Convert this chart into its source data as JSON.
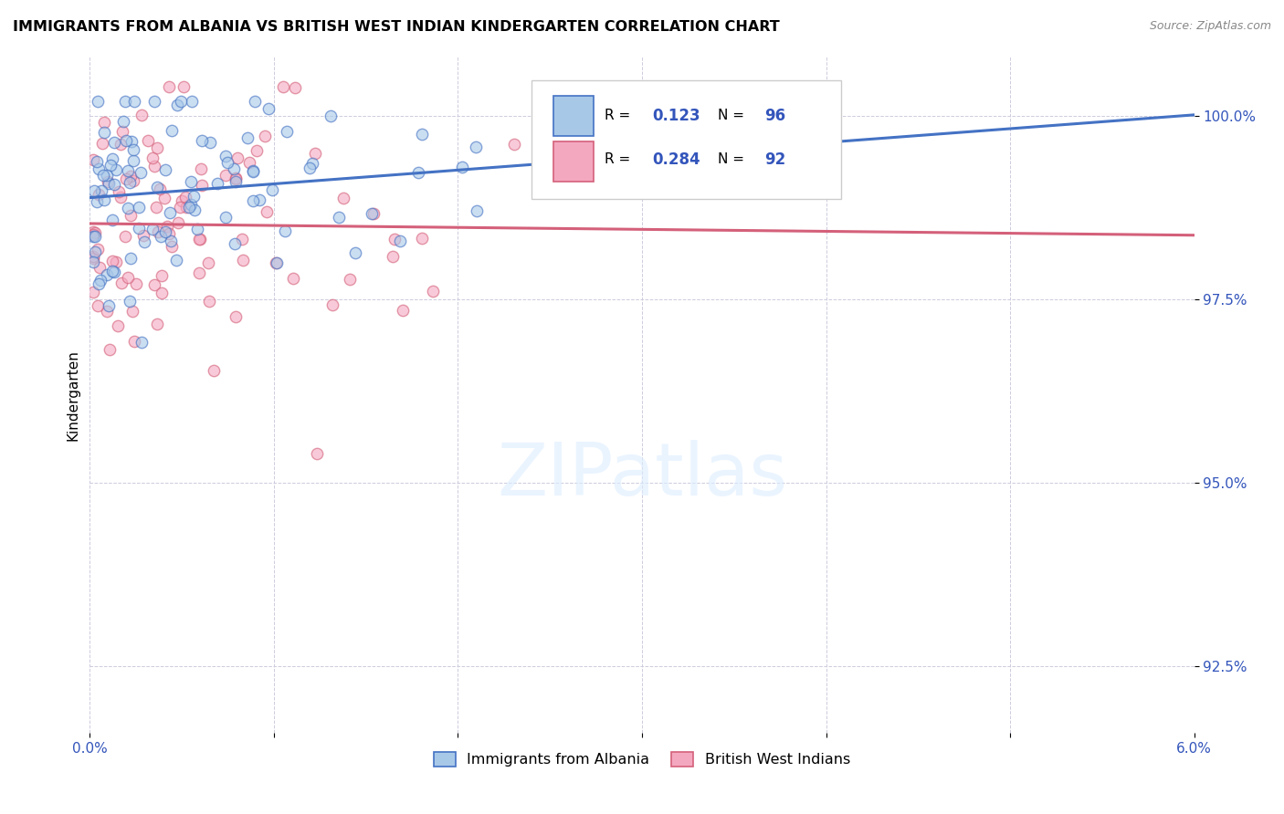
{
  "title": "IMMIGRANTS FROM ALBANIA VS BRITISH WEST INDIAN KINDERGARTEN CORRELATION CHART",
  "source": "Source: ZipAtlas.com",
  "ylabel": "Kindergarten",
  "ytick_labels": [
    "92.5%",
    "95.0%",
    "97.5%",
    "100.0%"
  ],
  "ytick_values": [
    0.925,
    0.95,
    0.975,
    1.0
  ],
  "xlim": [
    0.0,
    0.06
  ],
  "ylim": [
    0.916,
    1.008
  ],
  "legend_label1": "Immigrants from Albania",
  "legend_label2": "British West Indians",
  "R1": 0.123,
  "N1": 96,
  "R2": 0.284,
  "N2": 92,
  "color_albania": "#a8c8e8",
  "color_bwi": "#f4a8c0",
  "color_line_albania": "#4472c4",
  "color_line_bwi": "#d4607a",
  "scatter_alpha": 0.6,
  "marker_size": 80,
  "watermark_color": "#ddeeff",
  "watermark_alpha": 0.6
}
